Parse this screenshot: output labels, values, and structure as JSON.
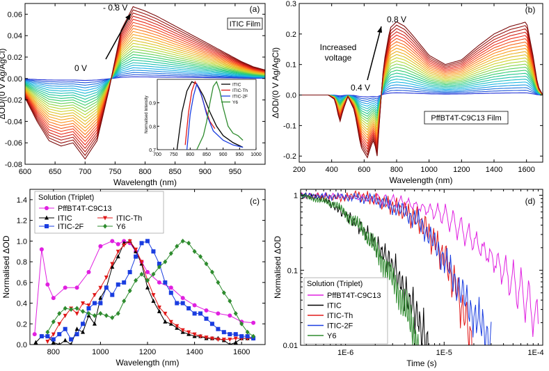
{
  "chart_data": [
    {
      "id": "a",
      "type": "line",
      "panel_label": "(a)",
      "xlabel": "Wavelength (nm)",
      "ylabel": "ΔOD/(0 V Ag/AgCl)",
      "xlim": [
        600,
        1000
      ],
      "ylim": [
        -0.08,
        0.07
      ],
      "xticks": [
        600,
        650,
        700,
        750,
        800,
        850,
        900,
        950
      ],
      "yticks": [
        -0.08,
        -0.06,
        -0.04,
        -0.02,
        0.0,
        0.02,
        0.04,
        0.06
      ],
      "ytick_labels": [
        "-0.08",
        "-0.06",
        "-0.04",
        "-0.02",
        "0.00",
        "0.02",
        "0.04",
        "0.06"
      ],
      "film_label": "ITIC Film",
      "arrow_label_start": "0 V",
      "arrow_label_end": "- 0.8 V",
      "n_traces": 26,
      "colormap": [
        "#1f2fd6",
        "#19b6e8",
        "#22cc77",
        "#c9d92a",
        "#ff9a1c",
        "#ee2a1a",
        "#7a0a0a"
      ],
      "envelope": {
        "x": [
          600,
          620,
          640,
          660,
          680,
          700,
          720,
          740,
          760,
          780,
          800,
          820,
          840,
          860,
          880,
          900,
          920,
          940,
          960,
          980,
          1000
        ],
        "y": [
          -0.018,
          -0.04,
          -0.058,
          -0.063,
          -0.06,
          -0.075,
          -0.058,
          -0.01,
          0.045,
          0.067,
          0.063,
          0.058,
          0.052,
          0.046,
          0.04,
          0.034,
          0.028,
          0.022,
          0.016,
          0.011,
          0.008
        ]
      },
      "inset": {
        "ylabel": "Normalised Intensity",
        "xlim": [
          700,
          1000
        ],
        "ylim": [
          0.7,
          1.0
        ],
        "xticks": [
          700,
          750,
          800,
          850,
          900,
          950,
          1000
        ],
        "yticks": [
          0.7,
          0.8,
          0.9
        ],
        "series": [
          {
            "name": "ITIC",
            "color": "#000000",
            "x": [
              760,
              775,
              790,
              805,
              820,
              840,
              860,
              880,
              900,
              930,
              960
            ],
            "y": [
              0.7,
              0.86,
              0.95,
              0.99,
              0.98,
              0.93,
              0.86,
              0.8,
              0.76,
              0.73,
              0.71
            ]
          },
          {
            "name": "ITIC-Th",
            "color": "#e01818",
            "x": [
              785,
              795,
              805,
              815,
              830,
              845,
              860,
              875
            ],
            "y": [
              0.72,
              0.86,
              0.95,
              0.99,
              0.95,
              0.88,
              0.82,
              0.79
            ]
          },
          {
            "name": "ITIC-2F",
            "color": "#1a3de0",
            "x": [
              790,
              800,
              810,
              820,
              835,
              850,
              870,
              900,
              930,
              960
            ],
            "y": [
              0.7,
              0.85,
              0.93,
              0.98,
              0.93,
              0.85,
              0.78,
              0.74,
              0.72,
              0.71
            ]
          },
          {
            "name": "Y6",
            "color": "#2e8b2e",
            "x": [
              820,
              840,
              850,
              860,
              870,
              880,
              890,
              900,
              915,
              930,
              945,
              960
            ],
            "y": [
              0.7,
              0.76,
              0.82,
              0.9,
              0.97,
              0.99,
              0.95,
              0.88,
              0.8,
              0.77,
              0.76,
              0.74
            ]
          }
        ]
      }
    },
    {
      "id": "b",
      "type": "line",
      "panel_label": "(b)",
      "xlabel": "Wavelength (nm)",
      "ylabel": "ΔOD/(0 V Ag/AgCl)",
      "xlim": [
        200,
        1700
      ],
      "ylim": [
        -0.22,
        0.3
      ],
      "xticks": [
        200,
        400,
        600,
        800,
        1000,
        1200,
        1400,
        1600
      ],
      "yticks": [
        -0.2,
        -0.1,
        0.0,
        0.1,
        0.2,
        0.3
      ],
      "ytick_labels": [
        "-0.2",
        "-0.1",
        "0.0",
        "0.1",
        "0.2",
        "0.3"
      ],
      "film_label": "PffBT4T-C9C13 Film",
      "arrow_label_start": "0.4 V",
      "arrow_label_end": "0.8 V",
      "arrow_caption": [
        "Increased",
        "voltage"
      ],
      "n_traces": 24,
      "colormap": [
        "#1f2fd6",
        "#19b6e8",
        "#22cc77",
        "#c9d92a",
        "#ff9a1c",
        "#ee2a1a",
        "#7a0a0a"
      ],
      "envelope": {
        "x": [
          200,
          380,
          420,
          450,
          470,
          500,
          540,
          580,
          620,
          640,
          660,
          680,
          700,
          720,
          760,
          800,
          850,
          900,
          1000,
          1100,
          1200,
          1300,
          1400,
          1500,
          1550,
          1600,
          1640,
          1670,
          1700
        ],
        "y": [
          0.0,
          0.0,
          -0.015,
          -0.09,
          -0.05,
          -0.005,
          -0.05,
          -0.17,
          -0.205,
          -0.17,
          -0.145,
          -0.2,
          -0.04,
          0.1,
          0.22,
          0.24,
          0.225,
          0.195,
          0.13,
          0.1,
          0.115,
          0.16,
          0.2,
          0.225,
          0.232,
          0.24,
          0.13,
          0.03,
          0.0
        ]
      }
    },
    {
      "id": "c",
      "type": "line",
      "panel_label": "(c)",
      "xlabel": "Wavelength (nm)",
      "ylabel": "Normalised ΔOD",
      "xlim": [
        700,
        1700
      ],
      "ylim": [
        0.0,
        1.5
      ],
      "xticks": [
        800,
        1000,
        1200,
        1400,
        1600
      ],
      "yticks": [
        0.0,
        0.2,
        0.4,
        0.6,
        0.8,
        1.0,
        1.2,
        1.4
      ],
      "ytick_labels": [
        "0.0",
        "0.2",
        "0.4",
        "0.6",
        "0.8",
        "1.0",
        "1.2",
        "1.4"
      ],
      "legend_title": "Solution (Triplet)",
      "series": [
        {
          "name": "PffBT4T-C9C13",
          "color": "#e020e0",
          "marker": "circle",
          "x": [
            720,
            750,
            775,
            800,
            850,
            900,
            950,
            1000,
            1050,
            1075,
            1100,
            1125,
            1150,
            1175,
            1200,
            1250,
            1300,
            1350,
            1400,
            1450,
            1500,
            1550,
            1600,
            1650
          ],
          "y": [
            0.1,
            0.92,
            0.58,
            0.45,
            0.55,
            0.55,
            0.7,
            0.95,
            1.0,
            0.97,
            1.0,
            0.98,
            0.9,
            0.8,
            0.7,
            0.6,
            0.55,
            0.45,
            0.38,
            0.33,
            0.3,
            0.28,
            0.22,
            0.21
          ]
        },
        {
          "name": "ITIC",
          "color": "#000000",
          "marker": "triangle",
          "x": [
            725,
            750,
            775,
            800,
            825,
            850,
            875,
            900,
            925,
            950,
            975,
            1000,
            1025,
            1050,
            1075,
            1100,
            1125,
            1150,
            1175,
            1200,
            1225,
            1250,
            1275,
            1300,
            1325,
            1350,
            1375,
            1400,
            1425,
            1450,
            1475,
            1500,
            1525,
            1550,
            1575,
            1600,
            1625,
            1650
          ],
          "y": [
            0.02,
            0.08,
            0.08,
            0.02,
            0.0,
            0.04,
            0.0,
            0.15,
            0.12,
            0.28,
            0.2,
            0.45,
            0.55,
            0.75,
            0.85,
            0.98,
            1.0,
            0.9,
            0.78,
            0.55,
            0.42,
            0.32,
            0.22,
            0.2,
            0.16,
            0.12,
            0.1,
            0.08,
            0.08,
            0.06,
            0.06,
            0.06,
            0.04,
            0.0,
            0.02,
            0.06,
            0.06,
            0.06
          ]
        },
        {
          "name": "ITIC-Th",
          "color": "#e01818",
          "marker": "triangle-down",
          "x": [
            775,
            800,
            825,
            850,
            875,
            900,
            925,
            950,
            975,
            1000,
            1025,
            1050,
            1075,
            1100,
            1125,
            1150,
            1175,
            1200,
            1225,
            1250,
            1275,
            1300,
            1325,
            1350,
            1375,
            1400,
            1425,
            1450,
            1475,
            1500,
            1525,
            1550,
            1575,
            1600,
            1625,
            1650
          ],
          "y": [
            0.03,
            0.1,
            0.2,
            0.28,
            0.35,
            0.3,
            0.4,
            0.38,
            0.48,
            0.55,
            0.65,
            0.78,
            0.9,
            0.96,
            1.0,
            0.92,
            0.8,
            0.62,
            0.48,
            0.36,
            0.3,
            0.22,
            0.18,
            0.14,
            0.12,
            0.1,
            0.08,
            0.07,
            0.06,
            0.05,
            0.05,
            0.05,
            0.06,
            0.06,
            0.06,
            0.06
          ]
        },
        {
          "name": "ITIC-2F",
          "color": "#1a3de0",
          "marker": "square",
          "x": [
            750,
            775,
            800,
            825,
            850,
            875,
            900,
            925,
            950,
            975,
            1000,
            1025,
            1050,
            1075,
            1100,
            1125,
            1150,
            1175,
            1200,
            1225,
            1250,
            1275,
            1300,
            1325,
            1350,
            1375,
            1400,
            1425,
            1450,
            1475,
            1500,
            1525,
            1550,
            1575,
            1600,
            1625,
            1650
          ],
          "y": [
            0.08,
            0.08,
            0.05,
            0.1,
            0.15,
            0.05,
            0.1,
            0.2,
            0.35,
            0.4,
            0.4,
            0.55,
            0.48,
            0.58,
            0.6,
            0.7,
            0.85,
            0.98,
            1.0,
            0.9,
            0.78,
            0.6,
            0.5,
            0.4,
            0.4,
            0.35,
            0.3,
            0.3,
            0.25,
            0.2,
            0.15,
            0.12,
            0.1,
            0.1,
            0.08,
            0.08,
            0.06
          ]
        },
        {
          "name": "Y6",
          "color": "#2e8b2e",
          "marker": "diamond",
          "x": [
            775,
            800,
            825,
            850,
            875,
            900,
            925,
            950,
            975,
            1000,
            1025,
            1050,
            1075,
            1100,
            1125,
            1150,
            1175,
            1200,
            1225,
            1250,
            1275,
            1300,
            1325,
            1350,
            1375,
            1400,
            1425,
            1450,
            1475,
            1500,
            1525,
            1550,
            1575,
            1600,
            1625,
            1650
          ],
          "y": [
            0.12,
            0.22,
            0.3,
            0.35,
            0.34,
            0.35,
            0.32,
            0.3,
            0.28,
            0.3,
            0.28,
            0.26,
            0.3,
            0.42,
            0.52,
            0.62,
            0.68,
            0.62,
            0.68,
            0.75,
            0.8,
            0.88,
            0.95,
            1.0,
            0.98,
            0.9,
            0.85,
            0.78,
            0.7,
            0.6,
            0.5,
            0.42,
            0.3,
            0.2,
            0.12,
            0.08
          ]
        }
      ]
    },
    {
      "id": "d",
      "type": "line",
      "panel_label": "(d)",
      "xlabel": "Time (s)",
      "ylabel": "Normalised ΔOD",
      "xscale": "log",
      "yscale": "log",
      "xlim": [
        3.5e-07,
        0.0001
      ],
      "ylim": [
        0.01,
        1.2
      ],
      "xtick_values": [
        1e-06,
        1e-05,
        0.0001
      ],
      "xtick_labels": [
        "1E-6",
        "1E-5",
        "1E-4"
      ],
      "ytick_values": [
        0.01,
        0.1,
        1
      ],
      "ytick_labels": [
        "0.01",
        "0.1",
        "1"
      ],
      "legend_title": "Solution (Triplet)",
      "series": [
        {
          "name": "PffBT4T-C9C13",
          "color": "#e020e0",
          "x": [
            3.5e-07,
            1e-06,
            2e-06,
            4e-06,
            1e-05,
            2e-05,
            4e-05,
            7e-05,
            9e-05
          ],
          "y": [
            1.0,
            0.96,
            0.9,
            0.8,
            0.55,
            0.25,
            0.1,
            0.04,
            0.02
          ]
        },
        {
          "name": "ITIC",
          "color": "#000000",
          "x": [
            3.5e-07,
            6e-07,
            1e-06,
            1.5e-06,
            2e-06,
            2.6e-06,
            3.2e-06,
            4e-06,
            5e-06,
            6e-06,
            7e-06
          ],
          "y": [
            1.0,
            0.9,
            0.55,
            0.35,
            0.22,
            0.15,
            0.1,
            0.05,
            0.03,
            0.015,
            0.01
          ]
        },
        {
          "name": "ITIC-Th",
          "color": "#e01818",
          "x": [
            3.5e-07,
            1e-06,
            1.2e-06,
            2e-06,
            4e-06,
            6e-06,
            1e-05,
            1.3e-05,
            1.6e-05,
            2e-05
          ],
          "y": [
            1.0,
            0.92,
            1.02,
            0.88,
            0.62,
            0.42,
            0.15,
            0.06,
            0.025,
            0.01
          ]
        },
        {
          "name": "ITIC-2F",
          "color": "#1a3de0",
          "x": [
            3.5e-07,
            1e-06,
            2e-06,
            4e-06,
            6e-06,
            1e-05,
            1.5e-05,
            2e-05,
            3e-05
          ],
          "y": [
            1.0,
            0.95,
            0.88,
            0.6,
            0.4,
            0.14,
            0.05,
            0.025,
            0.012
          ]
        },
        {
          "name": "Y6",
          "color": "#2e8b2e",
          "x": [
            3.5e-07,
            8e-07,
            1.5e-06,
            2.5e-06,
            3.5e-06,
            4.5e-06,
            5.5e-06
          ],
          "y": [
            1.0,
            0.75,
            0.35,
            0.12,
            0.05,
            0.02,
            0.01
          ]
        }
      ]
    }
  ]
}
